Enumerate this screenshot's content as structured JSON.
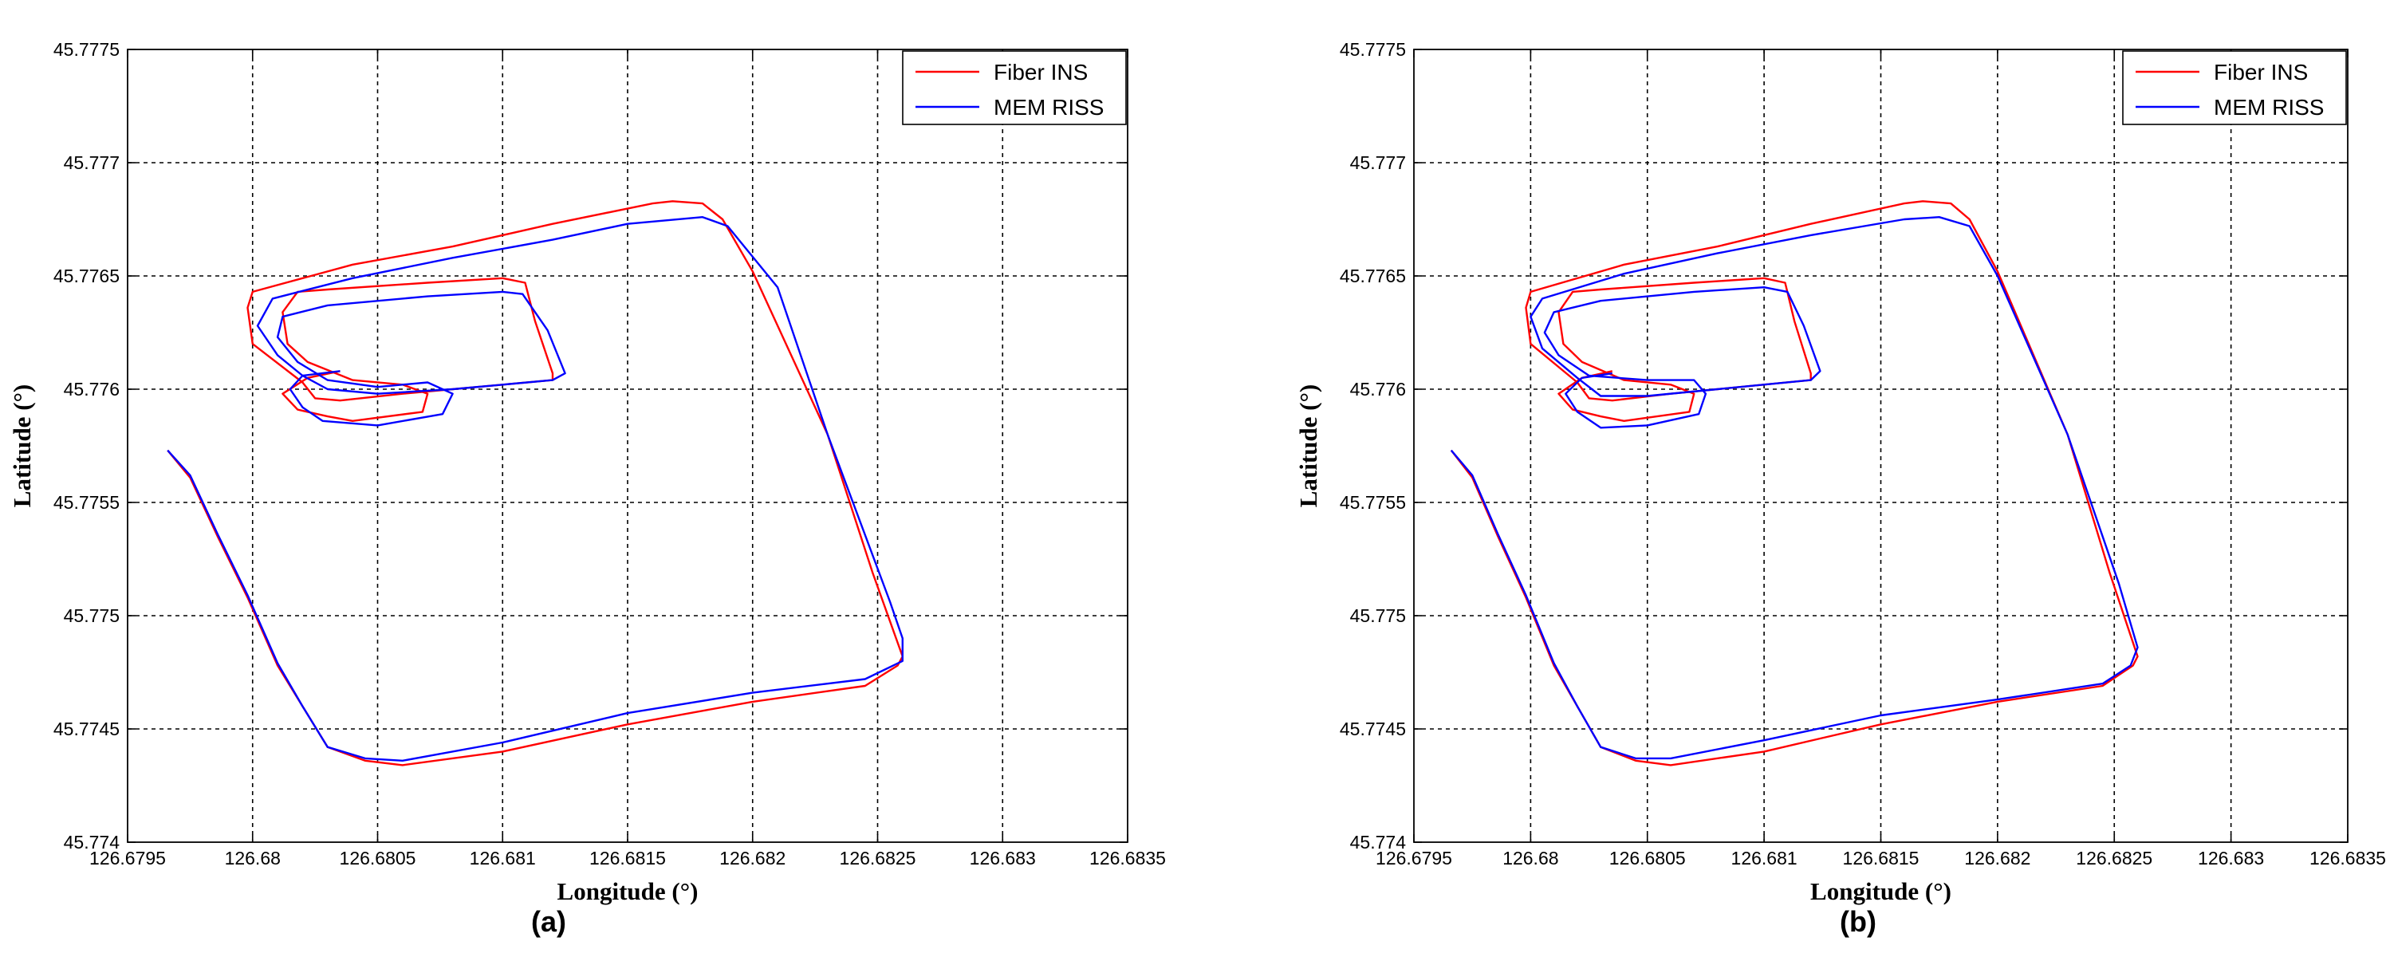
{
  "chart_data": [
    {
      "type": "line",
      "panel_label": "(a)",
      "xlabel": "Longitude (°)",
      "ylabel": "Latitude (°)",
      "xlim": [
        126.6795,
        126.6835
      ],
      "ylim": [
        45.774,
        45.7775
      ],
      "grid": true,
      "legend_position": "top-right",
      "xticks": [
        "126.6795",
        "126.68",
        "126.6805",
        "126.681",
        "126.6815",
        "126.682",
        "126.6825",
        "126.683",
        "126.6835"
      ],
      "yticks": [
        "45.774",
        "45.7745",
        "45.775",
        "45.7755",
        "45.776",
        "45.7765",
        "45.777",
        "45.7775"
      ],
      "series": [
        {
          "name": "Fiber INS",
          "color": "#ff0000",
          "points": [
            [
              126.67966,
              45.77573
            ],
            [
              126.67975,
              45.77561
            ],
            [
              126.67986,
              45.77535
            ],
            [
              126.67998,
              45.77508
            ],
            [
              126.6801,
              45.77478
            ],
            [
              126.6802,
              45.7746
            ],
            [
              126.6803,
              45.77442
            ],
            [
              126.68045,
              45.77436
            ],
            [
              126.6806,
              45.77434
            ],
            [
              126.681,
              45.7744
            ],
            [
              126.6815,
              45.77452
            ],
            [
              126.682,
              45.77462
            ],
            [
              126.68245,
              45.77469
            ],
            [
              126.68258,
              45.77478
            ],
            [
              126.6826,
              45.77482
            ],
            [
              126.68248,
              45.77519
            ],
            [
              126.6823,
              45.7758
            ],
            [
              126.682,
              45.77652
            ],
            [
              126.68188,
              45.77675
            ],
            [
              126.6818,
              45.77682
            ],
            [
              126.68168,
              45.77683
            ],
            [
              126.6816,
              45.77682
            ],
            [
              126.6812,
              45.77673
            ],
            [
              126.6808,
              45.77663
            ],
            [
              126.6804,
              45.77655
            ],
            [
              126.68,
              45.77643
            ],
            [
              126.67998,
              45.77636
            ],
            [
              126.68,
              45.7762
            ],
            [
              126.6802,
              45.77603
            ],
            [
              126.68025,
              45.77596
            ],
            [
              126.68035,
              45.77595
            ],
            [
              126.6806,
              45.77598
            ],
            [
              126.6808,
              45.776
            ],
            [
              126.6812,
              45.77604
            ],
            [
              126.6812,
              45.77607
            ],
            [
              126.68113,
              45.7763
            ],
            [
              126.68109,
              45.77647
            ],
            [
              126.681,
              45.77649
            ],
            [
              126.6807,
              45.77647
            ],
            [
              126.6803,
              45.77644
            ],
            [
              126.68018,
              45.77643
            ],
            [
              126.68012,
              45.77634
            ],
            [
              126.68014,
              45.7762
            ],
            [
              126.68022,
              45.77612
            ],
            [
              126.6804,
              45.77604
            ],
            [
              126.6806,
              45.77602
            ],
            [
              126.6807,
              45.77598
            ],
            [
              126.68068,
              45.7759
            ],
            [
              126.6804,
              45.77586
            ],
            [
              126.6803,
              45.77588
            ],
            [
              126.68018,
              45.77591
            ],
            [
              126.68012,
              45.77598
            ],
            [
              126.68022,
              45.77605
            ],
            [
              126.68035,
              45.77608
            ]
          ]
        },
        {
          "name": "MEM RISS",
          "color": "#0000ff",
          "points": [
            [
              126.67966,
              45.77573
            ],
            [
              126.67975,
              45.77562
            ],
            [
              126.67986,
              45.77536
            ],
            [
              126.67998,
              45.77509
            ],
            [
              126.6801,
              45.77479
            ],
            [
              126.6802,
              45.7746
            ],
            [
              126.6803,
              45.77442
            ],
            [
              126.68045,
              45.77437
            ],
            [
              126.6806,
              45.77436
            ],
            [
              126.681,
              45.77444
            ],
            [
              126.6815,
              45.77457
            ],
            [
              126.682,
              45.77466
            ],
            [
              126.68245,
              45.77472
            ],
            [
              126.6826,
              45.7748
            ],
            [
              126.6826,
              45.7749
            ],
            [
              126.68255,
              45.77506
            ],
            [
              126.6823,
              45.7758
            ],
            [
              126.6821,
              45.77645
            ],
            [
              126.6819,
              45.77672
            ],
            [
              126.6818,
              45.77676
            ],
            [
              126.6815,
              45.77673
            ],
            [
              126.6812,
              45.77666
            ],
            [
              126.6808,
              45.77658
            ],
            [
              126.6804,
              45.77649
            ],
            [
              126.68008,
              45.7764
            ],
            [
              126.68002,
              45.77628
            ],
            [
              126.6801,
              45.77615
            ],
            [
              126.6802,
              45.77606
            ],
            [
              126.6803,
              45.776
            ],
            [
              126.6805,
              45.77598
            ],
            [
              126.6808,
              45.776
            ],
            [
              126.6812,
              45.77604
            ],
            [
              126.68125,
              45.77607
            ],
            [
              126.68118,
              45.77626
            ],
            [
              126.68108,
              45.77642
            ],
            [
              126.681,
              45.77643
            ],
            [
              126.6807,
              45.77641
            ],
            [
              126.6803,
              45.77637
            ],
            [
              126.68012,
              45.77632
            ],
            [
              126.6801,
              45.77623
            ],
            [
              126.68018,
              45.77612
            ],
            [
              126.6803,
              45.77604
            ],
            [
              126.6805,
              45.77601
            ],
            [
              126.6807,
              45.77603
            ],
            [
              126.6808,
              45.77598
            ],
            [
              126.68076,
              45.77589
            ],
            [
              126.6805,
              45.77584
            ],
            [
              126.68028,
              45.77586
            ],
            [
              126.6802,
              45.77592
            ],
            [
              126.68015,
              45.776
            ],
            [
              126.6802,
              45.77606
            ],
            [
              126.68035,
              45.77608
            ]
          ]
        }
      ]
    },
    {
      "type": "line",
      "panel_label": "(b)",
      "xlabel": "Longitude (°)",
      "ylabel": "Latitude (°)",
      "xlim": [
        126.6795,
        126.6835
      ],
      "ylim": [
        45.774,
        45.7775
      ],
      "grid": true,
      "legend_position": "top-right",
      "xticks": [
        "126.6795",
        "126.68",
        "126.6805",
        "126.681",
        "126.6815",
        "126.682",
        "126.6825",
        "126.683",
        "126.6835"
      ],
      "yticks": [
        "45.774",
        "45.7745",
        "45.775",
        "45.7755",
        "45.776",
        "45.7765",
        "45.777",
        "45.7775"
      ],
      "series": [
        {
          "name": "Fiber INS",
          "color": "#ff0000",
          "points": [
            [
              126.67966,
              45.77573
            ],
            [
              126.67975,
              45.77561
            ],
            [
              126.67986,
              45.77535
            ],
            [
              126.67998,
              45.77508
            ],
            [
              126.6801,
              45.77478
            ],
            [
              126.6802,
              45.7746
            ],
            [
              126.6803,
              45.77442
            ],
            [
              126.68045,
              45.77436
            ],
            [
              126.6806,
              45.77434
            ],
            [
              126.681,
              45.7744
            ],
            [
              126.6815,
              45.77452
            ],
            [
              126.682,
              45.77462
            ],
            [
              126.68245,
              45.77469
            ],
            [
              126.68258,
              45.77478
            ],
            [
              126.6826,
              45.77482
            ],
            [
              126.68248,
              45.77519
            ],
            [
              126.6823,
              45.7758
            ],
            [
              126.682,
              45.77652
            ],
            [
              126.68188,
              45.77675
            ],
            [
              126.6818,
              45.77682
            ],
            [
              126.68168,
              45.77683
            ],
            [
              126.6816,
              45.77682
            ],
            [
              126.6812,
              45.77673
            ],
            [
              126.6808,
              45.77663
            ],
            [
              126.6804,
              45.77655
            ],
            [
              126.68,
              45.77643
            ],
            [
              126.67998,
              45.77636
            ],
            [
              126.68,
              45.7762
            ],
            [
              126.6802,
              45.77603
            ],
            [
              126.68025,
              45.77596
            ],
            [
              126.68035,
              45.77595
            ],
            [
              126.6806,
              45.77598
            ],
            [
              126.6808,
              45.776
            ],
            [
              126.6812,
              45.77604
            ],
            [
              126.6812,
              45.77607
            ],
            [
              126.68113,
              45.7763
            ],
            [
              126.68109,
              45.77647
            ],
            [
              126.681,
              45.77649
            ],
            [
              126.6807,
              45.77647
            ],
            [
              126.6803,
              45.77644
            ],
            [
              126.68018,
              45.77643
            ],
            [
              126.68012,
              45.77634
            ],
            [
              126.68014,
              45.7762
            ],
            [
              126.68022,
              45.77612
            ],
            [
              126.6804,
              45.77604
            ],
            [
              126.6806,
              45.77602
            ],
            [
              126.6807,
              45.77598
            ],
            [
              126.68068,
              45.7759
            ],
            [
              126.6804,
              45.77586
            ],
            [
              126.6803,
              45.77588
            ],
            [
              126.68018,
              45.77591
            ],
            [
              126.68012,
              45.77598
            ],
            [
              126.68022,
              45.77605
            ],
            [
              126.68035,
              45.77608
            ]
          ]
        },
        {
          "name": "MEM RISS",
          "color": "#0000ff",
          "points": [
            [
              126.67966,
              45.77573
            ],
            [
              126.67975,
              45.77562
            ],
            [
              126.67986,
              45.77536
            ],
            [
              126.67998,
              45.77509
            ],
            [
              126.6801,
              45.77479
            ],
            [
              126.6802,
              45.7746
            ],
            [
              126.6803,
              45.77442
            ],
            [
              126.68045,
              45.77437
            ],
            [
              126.6806,
              45.77437
            ],
            [
              126.681,
              45.77445
            ],
            [
              126.6815,
              45.77456
            ],
            [
              126.682,
              45.77463
            ],
            [
              126.68245,
              45.7747
            ],
            [
              126.68257,
              45.77478
            ],
            [
              126.6826,
              45.77486
            ],
            [
              126.68252,
              45.77514
            ],
            [
              126.6823,
              45.7758
            ],
            [
              126.682,
              45.7765
            ],
            [
              126.68188,
              45.77672
            ],
            [
              126.68175,
              45.77676
            ],
            [
              126.6816,
              45.77675
            ],
            [
              126.6812,
              45.77668
            ],
            [
              126.6808,
              45.7766
            ],
            [
              126.6804,
              45.77651
            ],
            [
              126.68005,
              45.7764
            ],
            [
              126.68,
              45.77632
            ],
            [
              126.68005,
              45.77618
            ],
            [
              126.6802,
              45.77605
            ],
            [
              126.6803,
              45.77597
            ],
            [
              126.6805,
              45.77597
            ],
            [
              126.6808,
              45.776
            ],
            [
              126.6812,
              45.77604
            ],
            [
              126.68124,
              45.77608
            ],
            [
              126.68117,
              45.77628
            ],
            [
              126.6811,
              45.77643
            ],
            [
              126.681,
              45.77645
            ],
            [
              126.6807,
              45.77643
            ],
            [
              126.6803,
              45.77639
            ],
            [
              126.6801,
              45.77634
            ],
            [
              126.68006,
              45.77625
            ],
            [
              126.68012,
              45.77615
            ],
            [
              126.68025,
              45.77606
            ],
            [
              126.6805,
              45.77604
            ],
            [
              126.6807,
              45.77604
            ],
            [
              126.68075,
              45.77598
            ],
            [
              126.68072,
              45.77589
            ],
            [
              126.6805,
              45.77584
            ],
            [
              126.6803,
              45.77583
            ],
            [
              126.6802,
              45.7759
            ],
            [
              126.68015,
              45.77598
            ],
            [
              126.68022,
              45.77605
            ],
            [
              126.68035,
              45.77607
            ]
          ]
        }
      ]
    }
  ]
}
